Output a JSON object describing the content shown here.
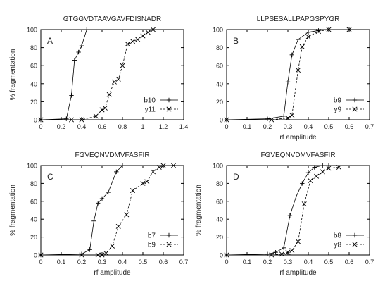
{
  "chart_data": [
    {
      "type": "line",
      "title": "GTGGVDTAAVGAVFDISNADR",
      "panel_label": "A",
      "xlabel": "",
      "ylabel": "% fragmentation",
      "xlim": [
        0,
        1.4
      ],
      "ylim": [
        0,
        100
      ],
      "xticks": [
        "0",
        "0.2",
        "0.4",
        "0.6",
        "0.8",
        "1",
        "1.2",
        "1.4"
      ],
      "yticks": [
        "0",
        "20",
        "40",
        "60",
        "80",
        "100"
      ],
      "legend_position": "bottom-right",
      "series": [
        {
          "name": "b10",
          "style": "solid",
          "marker": "plus",
          "x": [
            0,
            0.25,
            0.3,
            0.33,
            0.37,
            0.4,
            0.45
          ],
          "y": [
            0,
            1,
            27,
            66,
            75,
            82,
            100
          ]
        },
        {
          "name": "y11",
          "style": "dashed",
          "marker": "x",
          "x": [
            0,
            0.3,
            0.4,
            0.54,
            0.6,
            0.63,
            0.67,
            0.72,
            0.76,
            0.8,
            0.85,
            0.9,
            0.95,
            1.0,
            1.05,
            1.1
          ],
          "y": [
            0,
            0,
            0,
            4,
            11,
            13,
            28,
            42,
            45,
            60,
            84,
            87,
            89,
            93,
            97,
            100
          ]
        }
      ]
    },
    {
      "type": "line",
      "title": "LLPSESALLPAPGSPYGR",
      "panel_label": "B",
      "xlabel": "rf amplitude",
      "ylabel": "",
      "xlim": [
        0,
        0.7
      ],
      "ylim": [
        0,
        100
      ],
      "xticks": [
        "0",
        "0.1",
        "0.2",
        "0.3",
        "0.4",
        "0.5",
        "0.6",
        "0.7"
      ],
      "yticks": [
        "0",
        "20",
        "40",
        "60",
        "80",
        "100"
      ],
      "legend_position": "bottom-right",
      "series": [
        {
          "name": "b9",
          "style": "solid",
          "marker": "plus",
          "x": [
            0,
            0.2,
            0.28,
            0.3,
            0.32,
            0.35,
            0.4,
            0.45,
            0.5,
            0.6
          ],
          "y": [
            0,
            1,
            4,
            42,
            72,
            89,
            97,
            99,
            100,
            100
          ]
        },
        {
          "name": "y9",
          "style": "dashed",
          "marker": "x",
          "x": [
            0,
            0.22,
            0.3,
            0.32,
            0.35,
            0.37,
            0.4,
            0.45,
            0.5,
            0.6
          ],
          "y": [
            0,
            0,
            2,
            5,
            55,
            81,
            92,
            98,
            100,
            100
          ]
        }
      ]
    },
    {
      "type": "line",
      "title": "FGVEQNVDMVFASFIR",
      "panel_label": "C",
      "xlabel": "rf amplitude",
      "ylabel": "% fragmentation",
      "xlim": [
        0,
        0.7
      ],
      "ylim": [
        0,
        100
      ],
      "xticks": [
        "0",
        "0.1",
        "0.2",
        "0.3",
        "0.4",
        "0.5",
        "0.6",
        "0.7"
      ],
      "yticks": [
        "0",
        "20",
        "40",
        "60",
        "80",
        "100"
      ],
      "legend_position": "bottom-right",
      "series": [
        {
          "name": "b7",
          "style": "solid",
          "marker": "plus",
          "x": [
            0,
            0.2,
            0.24,
            0.26,
            0.28,
            0.3,
            0.33,
            0.37,
            0.4
          ],
          "y": [
            0,
            1,
            6,
            38,
            58,
            63,
            70,
            93,
            100
          ]
        },
        {
          "name": "b9",
          "style": "dashed",
          "marker": "x",
          "x": [
            0,
            0.2,
            0.28,
            0.3,
            0.32,
            0.35,
            0.38,
            0.42,
            0.45,
            0.5,
            0.52,
            0.55,
            0.58,
            0.6,
            0.65
          ],
          "y": [
            0,
            0,
            0,
            0,
            2,
            10,
            32,
            45,
            72,
            80,
            82,
            93,
            98,
            100,
            100
          ]
        }
      ]
    },
    {
      "type": "line",
      "title": "FGVEQNVDMVFASFIR",
      "panel_label": "D",
      "xlabel": "rf amplitude",
      "ylabel": "% fragmentation",
      "xlim": [
        0,
        0.7
      ],
      "ylim": [
        0,
        100
      ],
      "xticks": [
        "0",
        "0.1",
        "0.2",
        "0.3",
        "0.4",
        "0.5",
        "0.6",
        "0.7"
      ],
      "yticks": [
        "0",
        "20",
        "40",
        "60",
        "80",
        "100"
      ],
      "legend_position": "bottom-right",
      "series": [
        {
          "name": "b8",
          "style": "solid",
          "marker": "plus",
          "x": [
            0,
            0.2,
            0.24,
            0.28,
            0.31,
            0.34,
            0.37,
            0.4,
            0.43,
            0.47,
            0.5
          ],
          "y": [
            0,
            1,
            3,
            8,
            44,
            65,
            80,
            92,
            98,
            100,
            100
          ]
        },
        {
          "name": "y8",
          "style": "dashed",
          "marker": "x",
          "x": [
            0,
            0.22,
            0.27,
            0.3,
            0.32,
            0.35,
            0.38,
            0.41,
            0.44,
            0.47,
            0.5,
            0.55
          ],
          "y": [
            0,
            0,
            1,
            3,
            5,
            15,
            57,
            83,
            88,
            93,
            97,
            98
          ]
        }
      ]
    }
  ]
}
